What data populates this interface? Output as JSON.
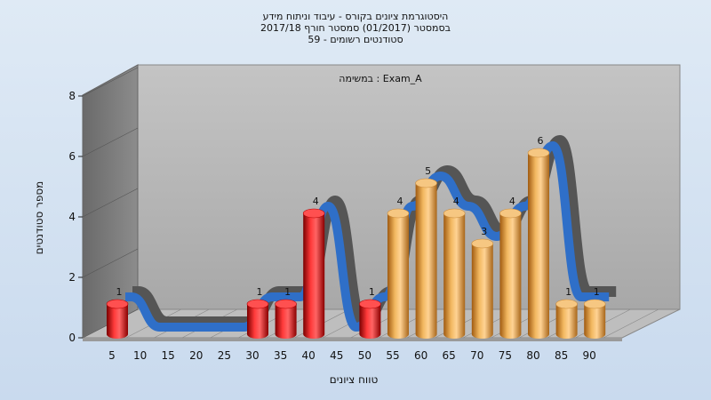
{
  "chart_data": {
    "type": "bar",
    "title_lines": [
      "היסטוגרמת ציונים בקורס - עיבוד וניתוח מידע",
      "בסמסטר  (01/2017)  סמסטר חורף  2017/18",
      "סטודנטים רשומים - 59"
    ],
    "annotation": "במשימה : Exam_A",
    "xlabel": "טווח ציונים",
    "ylabel": "מספר סטודנטים",
    "categories": [
      "5",
      "10",
      "15",
      "20",
      "25",
      "30",
      "35",
      "40",
      "45",
      "50",
      "55",
      "60",
      "65",
      "70",
      "75",
      "80",
      "85",
      "90"
    ],
    "values": [
      1,
      0,
      0,
      0,
      0,
      1,
      1,
      4,
      0,
      1,
      4,
      5,
      4,
      3,
      4,
      6,
      1,
      1
    ],
    "ylim": [
      0,
      8
    ],
    "yticks": [
      0,
      2,
      4,
      6,
      8
    ],
    "grid": false,
    "colors": {
      "fail_bar": "#e01818",
      "pass_bar": "#e8a040",
      "curve": "#2f6fc8",
      "curve_back": "#555555",
      "wall": "#b4b4b4",
      "side_wall": "#7a7a7a",
      "floor": "#bdbdbd"
    }
  }
}
